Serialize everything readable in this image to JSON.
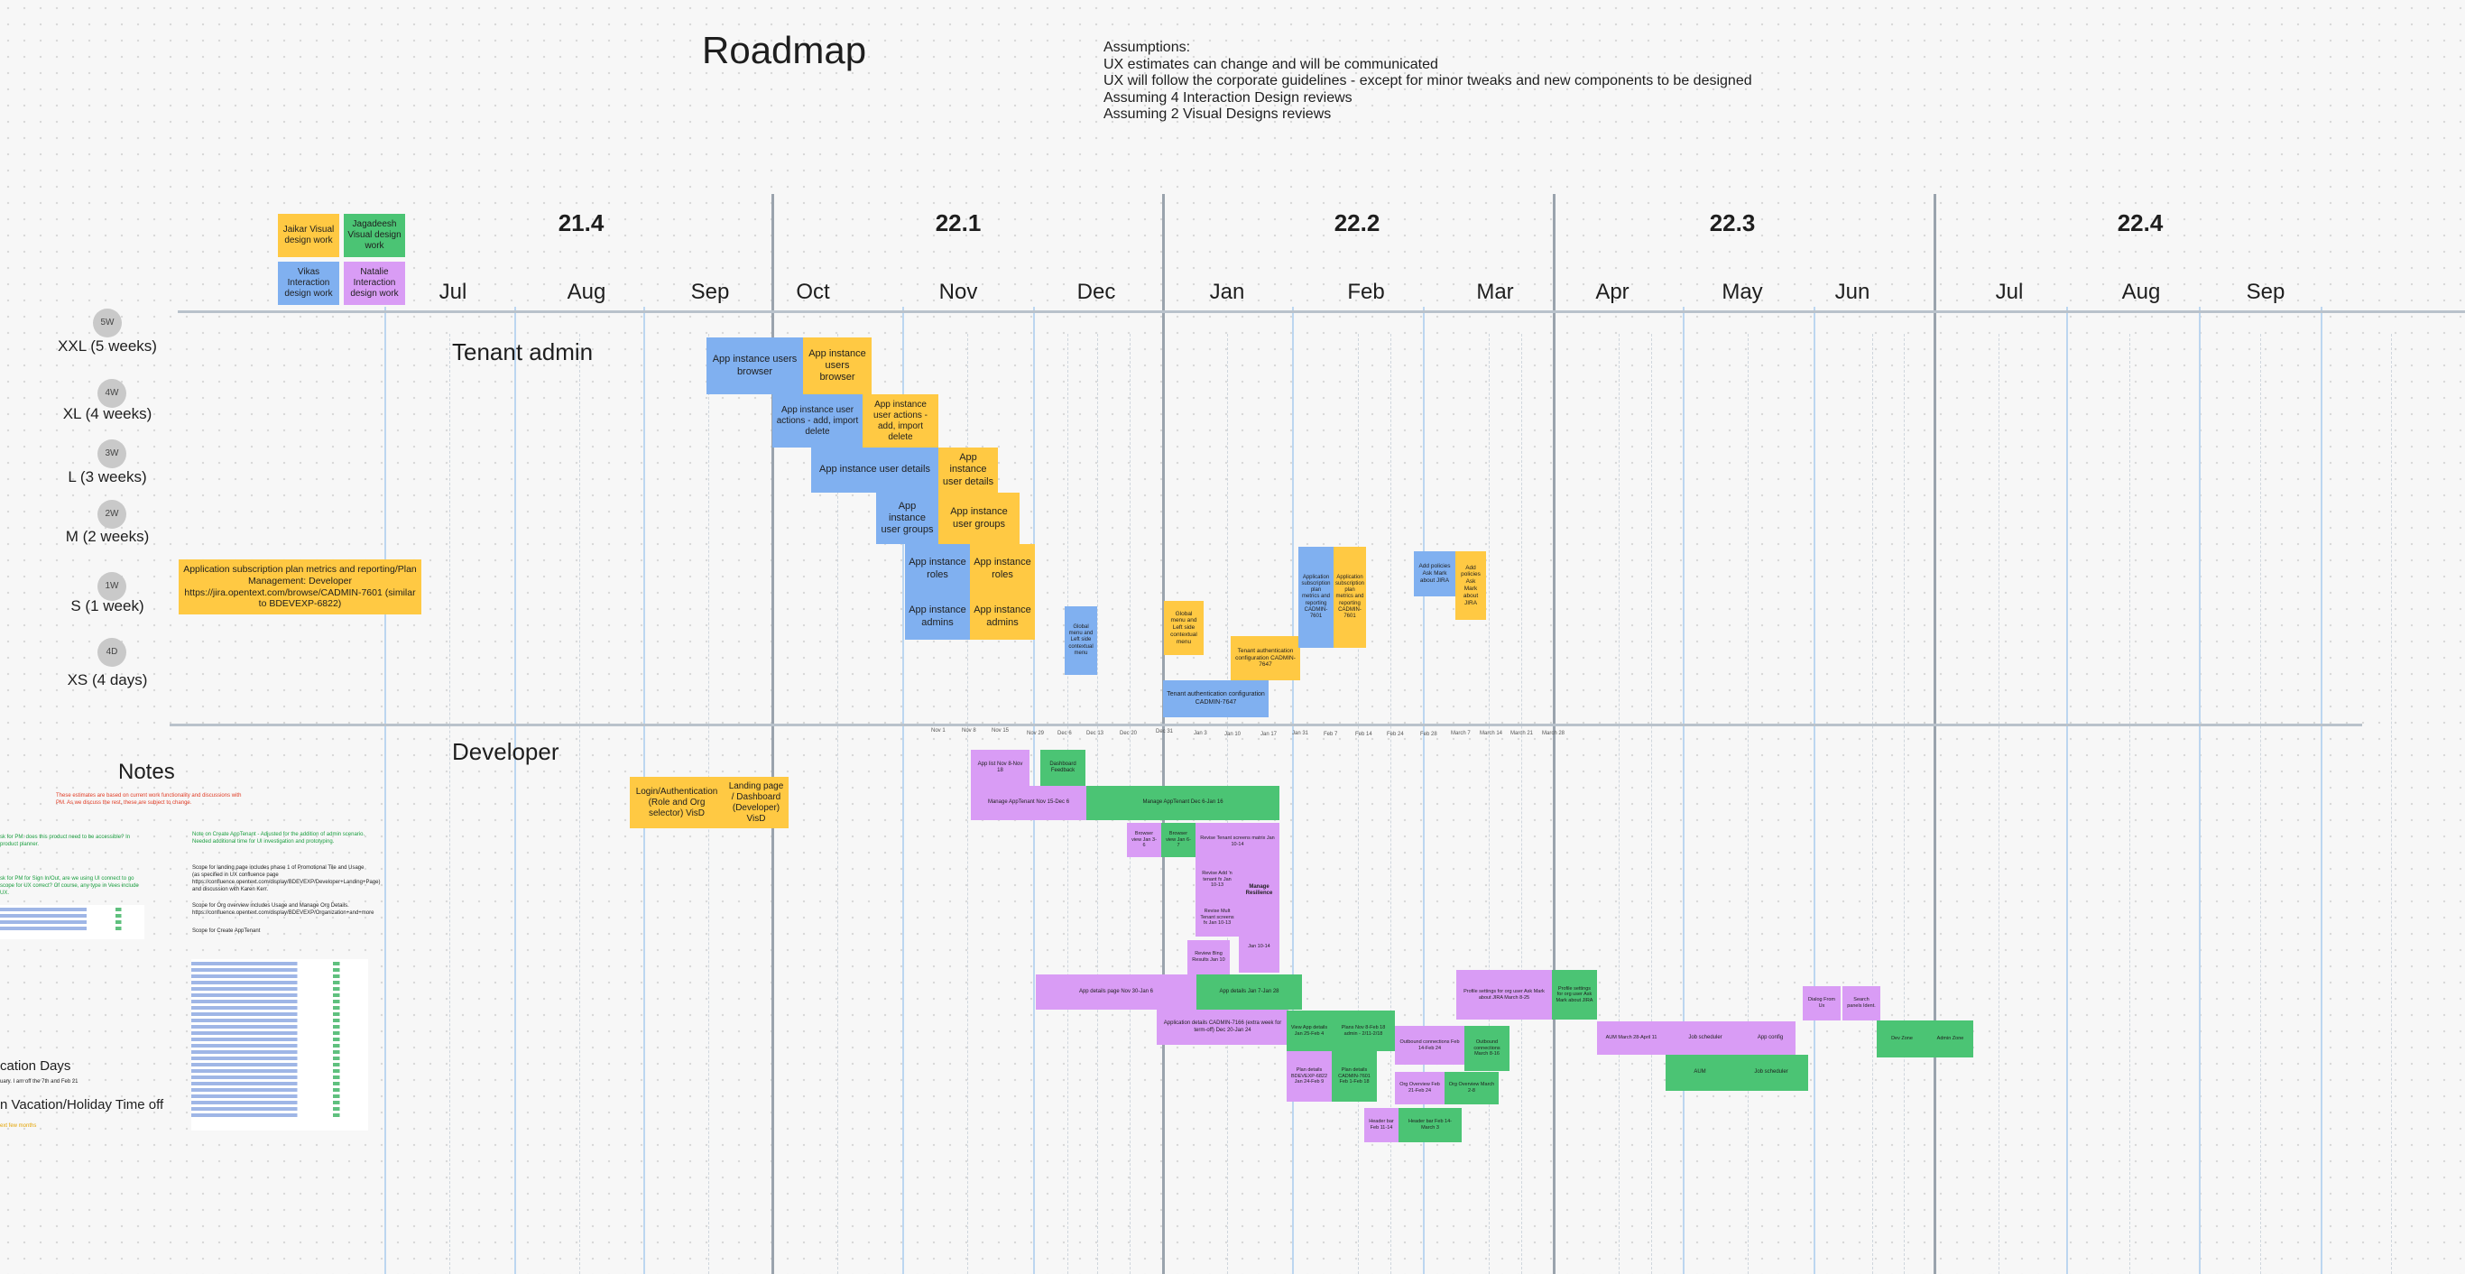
{
  "title": "Roadmap",
  "assumptions": [
    "Assumptions:",
    "UX estimates can change and will be communicated",
    "UX will follow the corporate guidelines - except for minor tweaks and new components to be designed",
    "Assuming 4 Interaction Design reviews",
    "Assuming 2 Visual Designs reviews"
  ],
  "quarters": [
    "21.4",
    "22.1",
    "22.2",
    "22.3",
    "22.4"
  ],
  "months": [
    "Jul",
    "Aug",
    "Sep",
    "Oct",
    "Nov",
    "Dec",
    "Jan",
    "Feb",
    "Mar",
    "Apr",
    "May",
    "Jun",
    "Jul",
    "Aug",
    "Sep"
  ],
  "legend": [
    {
      "label": "Jaikar Visual design work",
      "color": "#ffc943"
    },
    {
      "label": "Jagadeesh Visual design work",
      "color": "#4bc474"
    },
    {
      "label": "Vikas Interaction design work",
      "color": "#80b0f0"
    },
    {
      "label": "Natalie Interaction design work",
      "color": "#d99cf5"
    }
  ],
  "sizes": [
    {
      "badge": "5W",
      "label": "XXL (5 weeks)"
    },
    {
      "badge": "4W",
      "label": "XL (4 weeks)"
    },
    {
      "badge": "3W",
      "label": "L (3 weeks)"
    },
    {
      "badge": "2W",
      "label": "M (2 weeks)"
    },
    {
      "badge": "1W",
      "label": "S (1 week)"
    },
    {
      "badge": "4D",
      "label": "XS (4 days)"
    }
  ],
  "lanes": {
    "tenant": "Tenant admin",
    "developer": "Developer"
  },
  "tenant_cards": [
    "App instance users browser",
    "App instance users browser",
    "App instance user actions - add, import delete",
    "App instance user actions - add, import delete",
    "App instance user details",
    "App instance user details",
    "App instance user groups",
    "App instance user groups",
    "App instance roles",
    "App instance roles",
    "App instance admins",
    "App instance admins",
    "Application subscription plan metrics and reporting/Plan Management: Developer https://jira.opentext.com/browse/CADMIN-7601 (similar to BDEVEXP-6822)",
    "Global menu and Left side contextual menu",
    "Global menu and Left side contextual menu",
    "Tenant authentication configuration CADMIN-7647",
    "Tenant authentication configuration CADMIN-7647",
    "Application subscription plan metrics and reporting CADMIN-7601",
    "Application subscription plan metrics and reporting CADMIN-7601",
    "Add policies Ask Mark about JIRA",
    "Add policies Ask Mark about JIRA"
  ],
  "week_ticks": [
    "Nov 1",
    "Nov 8",
    "Nov 15",
    "Nov 29",
    "Dec 6",
    "Dec 13",
    "Dec 20",
    "Dec 31",
    "Jan 3",
    "Jan 10",
    "Jan 17",
    "Jan 31",
    "Feb 7",
    "Feb 14",
    "Feb 24",
    "Feb 28",
    "March 7",
    "March 14",
    "March 21",
    "March 28"
  ],
  "developer_cards": [
    "Login/Authentication (Role and Org selector) VisD",
    "Landing page / Dashboard (Developer) VisD",
    "App list Nov 8-Nov 18",
    "Dashboard Feedback",
    "Manage AppTenant Nov 15-Dec 6",
    "Manage AppTenant Dec 6-Jan 16",
    "Browser view Jan 3-6",
    "Browser view Jan 6-7",
    "Revise Tenant screens matrix Jan 10-14",
    "Revise Add 'n tenant fx Jan 10-13",
    "Revise Mult Tenant screens fx Jan 10-13",
    "Manage Resilience",
    "Jan 10-14",
    "Review Bing Results Jan 10",
    "App details page Nov 30-Jan 6",
    "App details Jan 7-Jan 28",
    "Application details CADMIN-7166 (extra week for term-off) Dec 20-Jan 24",
    "View App details Jan 25-Feb 4",
    "Plans Nov 8-Feb 18 admin - 2/11-2/18",
    "Plan details BDEVEXP-6822 Jan 24-Feb 9",
    "Plan details CADMIN-7601 Feb 1-Feb 18",
    "Outbound connections Feb 14-Feb 24",
    "Outbound connections March 8-16",
    "Org Overview Feb 21-Feb 24",
    "Org Overview March 2-8",
    "Header bar Feb 11-14",
    "Header bar Feb 14-March 3",
    "Profile settings for org user Ask Mark about JIRA March 8-25",
    "Profile settings for org user Ask Mark about JIRA",
    "AUM March 28-April 11",
    "Job scheduler",
    "App config",
    "AUM",
    "Job scheduler",
    "Dialog From Ux",
    "Search panels Ident.",
    "Dev Zone",
    "Admin Zone"
  ],
  "notes": {
    "title": "Notes",
    "red_note": "These estimates are based on current work functionality and discussions with PM. As we discuss the rest, these are subject to change.",
    "green_note": "Note on Create AppTenant - Adjusted for the addition of admin scenario. Needed additional time for UI investigation and prototyping.",
    "scope1": "Scope for landing page includes phase 1 of Promotional Tile and Usage (as specified in UX confluence page https://confluence.opentext.com/display/BDEVEXP/Developer+Landing+Page) and discussion with Karen Kerr.",
    "scope2": "Scope for Org overview includes Usage and Manage Org Details. https://confluence.opentext.com/display/BDEVEXP/Organization+and+more",
    "scope3": "Scope for Create AppTenant",
    "left_note1": "sk for PM: does this product need to be accessible? In product planner.",
    "left_note2": "sk for PM for Sign In/Out, are we using UI connect to go scope for UX correct? Of course, any type in Vees include UX.",
    "vacation_title": "cation Days",
    "vacation_sub": "uary. I am off the 7th and Feb 21",
    "vacation2": "n Vacation/Holiday Time off",
    "vacation_note": "ext few months"
  }
}
